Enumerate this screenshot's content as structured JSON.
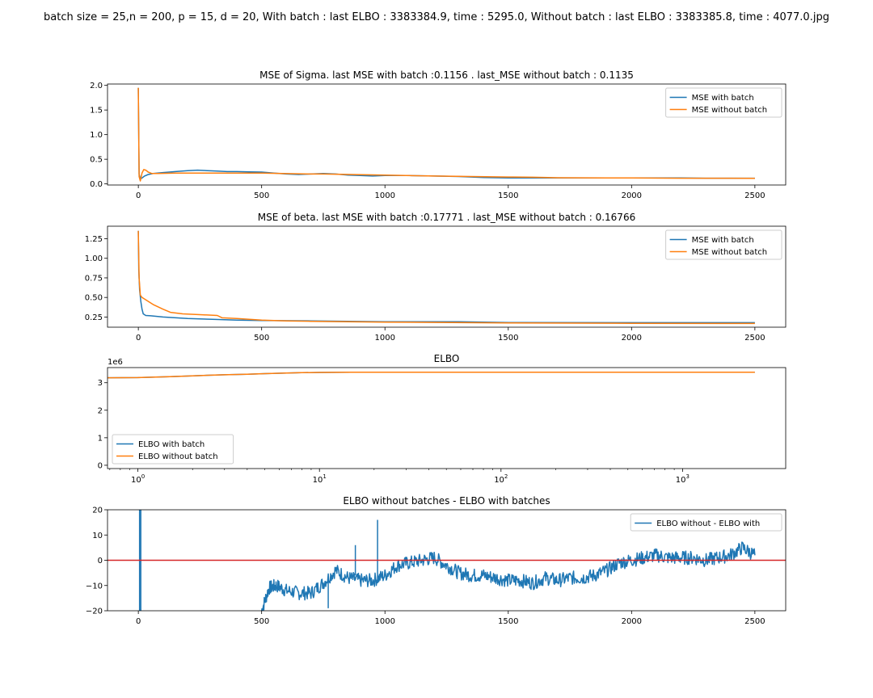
{
  "suptitle": "batch size = 25,n = 200, p = 15, d = 20, With batch : last ELBO : 3383384.9, time : 5295.0, Without batch : last ELBO : 3383385.8, time : 4077.0.jpg",
  "colors": {
    "with": "#1f77b4",
    "without": "#ff7f0e",
    "zero_line": "#d62728"
  },
  "chart_data": [
    {
      "id": "mse-sigma",
      "type": "line",
      "title": "MSE of Sigma. last MSE with batch :0.1156 . last_MSE without batch : 0.1135",
      "xscale": "linear",
      "xlim": [
        -125,
        2625
      ],
      "ylim": [
        -0.0225,
        2.0275
      ],
      "xticks": [
        0,
        500,
        1000,
        1500,
        2000,
        2500
      ],
      "xtick_labels": [
        "0",
        "500",
        "1000",
        "1500",
        "2000",
        "2500"
      ],
      "yticks": [
        0.0,
        0.5,
        1.0,
        1.5,
        2.0
      ],
      "ytick_labels": [
        "0.0",
        "0.5",
        "1.0",
        "1.5",
        "2.0"
      ],
      "legend_loc": "upper right",
      "series": [
        {
          "name": "MSE with batch",
          "color": "#1f77b4",
          "x": [
            0,
            3,
            8,
            15,
            25,
            40,
            60,
            100,
            150,
            200,
            240,
            280,
            320,
            360,
            400,
            450,
            500,
            550,
            600,
            650,
            700,
            750,
            800,
            850,
            900,
            950,
            1000,
            1100,
            1200,
            1300,
            1400,
            1500,
            1600,
            1700,
            1800,
            1900,
            2000,
            2100,
            2200,
            2300,
            2400,
            2500
          ],
          "y": [
            1.95,
            0.2,
            0.1,
            0.12,
            0.16,
            0.19,
            0.21,
            0.23,
            0.25,
            0.27,
            0.28,
            0.27,
            0.26,
            0.25,
            0.25,
            0.245,
            0.24,
            0.22,
            0.2,
            0.19,
            0.2,
            0.21,
            0.2,
            0.18,
            0.17,
            0.16,
            0.17,
            0.17,
            0.16,
            0.15,
            0.13,
            0.12,
            0.12,
            0.12,
            0.12,
            0.12,
            0.12,
            0.12,
            0.12,
            0.115,
            0.115,
            0.1156
          ]
        },
        {
          "name": "MSE without batch",
          "color": "#ff7f0e",
          "x": [
            0,
            3,
            8,
            15,
            22,
            30,
            40,
            55,
            80,
            150,
            300,
            500,
            700,
            750,
            1000,
            1200,
            1500,
            1600,
            1700,
            1900,
            2000,
            2200,
            2400,
            2500
          ],
          "y": [
            1.95,
            0.15,
            0.06,
            0.22,
            0.29,
            0.28,
            0.24,
            0.21,
            0.21,
            0.22,
            0.22,
            0.22,
            0.2,
            0.2,
            0.18,
            0.16,
            0.14,
            0.135,
            0.125,
            0.12,
            0.12,
            0.115,
            0.115,
            0.1135
          ]
        }
      ]
    },
    {
      "id": "mse-beta",
      "type": "line",
      "title": "MSE of beta. last MSE with batch :0.17771 . last_MSE without batch : 0.16766",
      "xscale": "linear",
      "xlim": [
        -125,
        2625
      ],
      "ylim": [
        0.12,
        1.41
      ],
      "xticks": [
        0,
        500,
        1000,
        1500,
        2000,
        2500
      ],
      "xtick_labels": [
        "0",
        "500",
        "1000",
        "1500",
        "2000",
        "2500"
      ],
      "yticks": [
        0.25,
        0.5,
        0.75,
        1.0,
        1.25
      ],
      "ytick_labels": [
        "0.25",
        "0.50",
        "0.75",
        "1.00",
        "1.25"
      ],
      "legend_loc": "upper right",
      "series": [
        {
          "name": "MSE with batch",
          "color": "#1f77b4",
          "x": [
            0,
            2,
            5,
            10,
            15,
            20,
            30,
            50,
            100,
            200,
            300,
            400,
            500,
            700,
            1000,
            1300,
            1500,
            2000,
            2500
          ],
          "y": [
            1.35,
            0.85,
            0.6,
            0.45,
            0.35,
            0.29,
            0.27,
            0.265,
            0.25,
            0.23,
            0.22,
            0.21,
            0.205,
            0.2,
            0.19,
            0.19,
            0.18,
            0.178,
            0.1777
          ]
        },
        {
          "name": "MSE without batch",
          "color": "#ff7f0e",
          "x": [
            0,
            3,
            8,
            15,
            25,
            40,
            60,
            80,
            100,
            130,
            180,
            250,
            320,
            340,
            400,
            500,
            600,
            700,
            1000,
            1500,
            2000,
            2500
          ],
          "y": [
            1.35,
            0.75,
            0.53,
            0.5,
            0.48,
            0.45,
            0.41,
            0.38,
            0.35,
            0.31,
            0.29,
            0.28,
            0.27,
            0.24,
            0.23,
            0.21,
            0.2,
            0.195,
            0.185,
            0.175,
            0.17,
            0.1677
          ]
        }
      ]
    },
    {
      "id": "elbo",
      "type": "line",
      "title": "ELBO",
      "xscale": "log",
      "xlim": [
        0.68,
        3700
      ],
      "ylim": [
        -120000,
        3550000
      ],
      "offset_text": "1e6",
      "xticks": [
        1,
        10,
        100,
        1000
      ],
      "xtick_labels": [
        "10^0",
        "10^1",
        "10^2",
        "10^3"
      ],
      "yticks": [
        0,
        1000000,
        2000000,
        3000000
      ],
      "ytick_labels": [
        "0",
        "1",
        "2",
        "3"
      ],
      "legend_loc": "lower left",
      "series": [
        {
          "name": "ELBO with batch",
          "color": "#1f77b4",
          "x": [
            0.68,
            1,
            1.5,
            2,
            3,
            4,
            5,
            6,
            8,
            10,
            15,
            30,
            100,
            1000,
            2500
          ],
          "y": [
            3180000,
            3185000,
            3220000,
            3250000,
            3290000,
            3310000,
            3330000,
            3345000,
            3365000,
            3375000,
            3380000,
            3382000,
            3383000,
            3383300,
            3383385
          ]
        },
        {
          "name": "ELBO without batch",
          "color": "#ff7f0e",
          "x": [
            0.68,
            1,
            1.5,
            2,
            3,
            4,
            5,
            6,
            8,
            10,
            15,
            30,
            100,
            1000,
            2500
          ],
          "y": [
            3180000,
            3185000,
            3220000,
            3250000,
            3290000,
            3310000,
            3330000,
            3345000,
            3365000,
            3375000,
            3380000,
            3382000,
            3383000,
            3383300,
            3383386
          ]
        }
      ]
    },
    {
      "id": "elbo-diff",
      "type": "line",
      "title": "ELBO without batches - ELBO with batches",
      "xscale": "linear",
      "xlim": [
        -125,
        2625
      ],
      "ylim": [
        -20,
        20
      ],
      "xticks": [
        0,
        500,
        1000,
        1500,
        2000,
        2500
      ],
      "xtick_labels": [
        "0",
        "500",
        "1000",
        "1500",
        "2000",
        "2500"
      ],
      "yticks": [
        -20,
        -10,
        0,
        10,
        20
      ],
      "ytick_labels": [
        "−20",
        "−10",
        "0",
        "10",
        "20"
      ],
      "hline": 0,
      "legend_loc": "upper right",
      "series": [
        {
          "name": "ELBO without - ELBO with",
          "color": "#1f77b4",
          "x": [
            500,
            530,
            560,
            600,
            650,
            700,
            750,
            800,
            850,
            900,
            950,
            1000,
            1050,
            1100,
            1150,
            1200,
            1250,
            1300,
            1350,
            1400,
            1450,
            1500,
            1550,
            1600,
            1650,
            1700,
            1750,
            1800,
            1850,
            1900,
            1950,
            2000,
            2050,
            2100,
            2150,
            2200,
            2250,
            2300,
            2350,
            2400,
            2450,
            2500
          ],
          "y": [
            -20,
            -11,
            -10,
            -12,
            -13,
            -13,
            -9,
            -4,
            -7,
            -8,
            -8,
            -6,
            -2,
            -1,
            0,
            1,
            -2,
            -5,
            -6,
            -6,
            -7,
            -8,
            -8,
            -9,
            -7,
            -8,
            -7,
            -7,
            -6,
            -4,
            -1,
            0,
            1,
            2,
            1,
            1,
            1,
            0,
            1,
            2,
            5,
            2
          ]
        }
      ],
      "spikes": [
        {
          "x": 5,
          "y": [
            -20,
            20
          ]
        },
        {
          "x": 10,
          "y": [
            -20,
            20
          ]
        },
        {
          "x": 970,
          "y": [
            -8,
            16
          ]
        },
        {
          "x": 880,
          "y": [
            -6,
            6
          ]
        },
        {
          "x": 770,
          "y": [
            -19,
            -8
          ]
        }
      ]
    }
  ]
}
